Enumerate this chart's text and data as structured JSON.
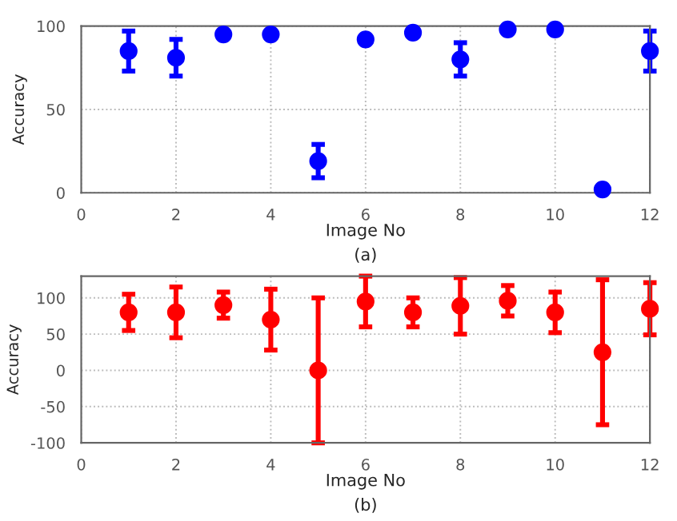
{
  "chart_data": [
    {
      "type": "scatter",
      "xlabel": "Image No",
      "ylabel": "Accuracy",
      "annotations": [
        "(a)"
      ],
      "x": [
        1,
        2,
        3,
        4,
        5,
        6,
        7,
        8,
        9,
        10,
        11,
        12
      ],
      "series": [
        {
          "color": "#0000ff",
          "values": [
            85,
            81,
            95,
            95,
            19,
            92,
            96,
            80,
            98,
            98,
            2,
            85
          ],
          "errors": [
            12,
            11,
            null,
            null,
            10,
            null,
            null,
            10,
            null,
            null,
            null,
            12
          ]
        }
      ],
      "xlim": [
        0,
        12
      ],
      "xticks": [
        0,
        2,
        4,
        6,
        8,
        10,
        12
      ],
      "ylim": [
        0,
        100
      ],
      "yticks": [
        0,
        50,
        100
      ],
      "grid": true,
      "marker": "circle"
    },
    {
      "type": "scatter",
      "xlabel": "Image No",
      "ylabel": "Accuracy",
      "annotations": [
        "(b)"
      ],
      "x": [
        1,
        2,
        3,
        4,
        5,
        6,
        7,
        8,
        9,
        10,
        11,
        12
      ],
      "series": [
        {
          "color": "#ff0000",
          "values": [
            80,
            80,
            90,
            70,
            0,
            95,
            80,
            89,
            96,
            80,
            25,
            85
          ],
          "errors": [
            25,
            35,
            18,
            42,
            100,
            35,
            20,
            39,
            21,
            28,
            100,
            36
          ]
        }
      ],
      "xlim": [
        0,
        12
      ],
      "xticks": [
        0,
        2,
        4,
        6,
        8,
        10,
        12
      ],
      "ylim": [
        -100,
        130
      ],
      "yticks": [
        -100,
        -50,
        0,
        50,
        100
      ],
      "grid": true,
      "marker": "circle"
    }
  ]
}
